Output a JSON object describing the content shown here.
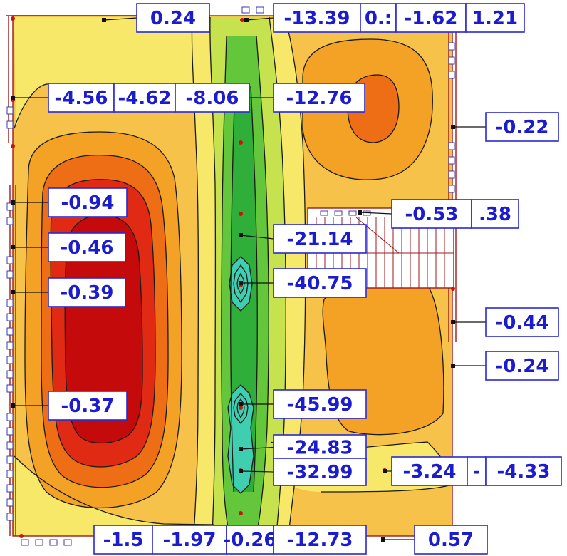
{
  "colors": {
    "background_slab": "#f6c24a",
    "light_yellow": "#f7e86a",
    "orange": "#f4a226",
    "deep_orange": "#ee6e16",
    "red": "#e02a14",
    "dark_red": "#c40a0a",
    "green_light": "#c6e24e",
    "green": "#63c63b",
    "green_dark": "#2fae3a",
    "cyan": "#3fcfb0",
    "label_text": "#1c1ccf",
    "label_border": "#2a2ad0"
  },
  "labels": [
    {
      "id": "top-1",
      "text": "0.24"
    },
    {
      "id": "top-2",
      "text": "-13.39"
    },
    {
      "id": "top-3",
      "text": "0.:"
    },
    {
      "id": "top-4",
      "text": "-1.62"
    },
    {
      "id": "top-5",
      "text": "1.21"
    },
    {
      "id": "row2-1",
      "text": "-4.56"
    },
    {
      "id": "row2-2",
      "text": "-4.62"
    },
    {
      "id": "row2-3",
      "text": "-8.06"
    },
    {
      "id": "row2-4",
      "text": "-12.76"
    },
    {
      "id": "right-1",
      "text": "-0.22"
    },
    {
      "id": "left-1",
      "text": "-0.94"
    },
    {
      "id": "stair-1",
      "text": "-0.53"
    },
    {
      "id": "stair-2",
      "text": ".38"
    },
    {
      "id": "center-1",
      "text": "-21.14"
    },
    {
      "id": "left-2",
      "text": "-0.46"
    },
    {
      "id": "center-2",
      "text": "-40.75"
    },
    {
      "id": "left-3",
      "text": "-0.39"
    },
    {
      "id": "right-2",
      "text": "-0.44"
    },
    {
      "id": "right-3",
      "text": "-0.24"
    },
    {
      "id": "left-4",
      "text": "-0.37"
    },
    {
      "id": "center-3",
      "text": "-45.99"
    },
    {
      "id": "center-4",
      "text": "-24.83"
    },
    {
      "id": "center-5",
      "text": "-32.99"
    },
    {
      "id": "right-4",
      "text": "-3.24"
    },
    {
      "id": "right-5",
      "text": "-"
    },
    {
      "id": "right-6",
      "text": "-4.33"
    },
    {
      "id": "bottom-1",
      "text": "-1.5"
    },
    {
      "id": "bottom-2",
      "text": "-1.97"
    },
    {
      "id": "bottom-3",
      "text": "-0.26"
    },
    {
      "id": "bottom-4",
      "text": "-12.73"
    },
    {
      "id": "bottom-5",
      "text": "0.57"
    }
  ]
}
